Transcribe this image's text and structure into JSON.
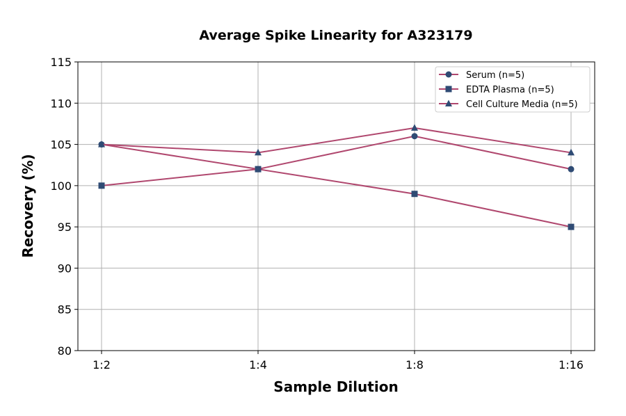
{
  "chart_data": {
    "type": "line",
    "title": "Average Spike Linearity for A323179",
    "xlabel": "Sample Dilution",
    "ylabel": "Recovery (%)",
    "categories": [
      "1:2",
      "1:4",
      "1:8",
      "1:16"
    ],
    "ylim": [
      80,
      115
    ],
    "yticks": [
      80,
      85,
      90,
      95,
      100,
      105,
      110,
      115
    ],
    "grid": true,
    "legend_position": "top-right",
    "line_color": "#b0476e",
    "marker_color": "#2f4b74",
    "series": [
      {
        "name": "Serum (n=5)",
        "marker": "circle",
        "values": [
          105,
          102,
          106,
          102
        ]
      },
      {
        "name": "EDTA Plasma (n=5)",
        "marker": "square",
        "values": [
          100,
          102,
          99,
          95
        ]
      },
      {
        "name": "Cell Culture Media (n=5)",
        "marker": "triangle",
        "values": [
          105,
          104,
          107,
          104
        ]
      }
    ]
  }
}
